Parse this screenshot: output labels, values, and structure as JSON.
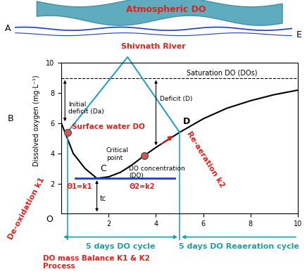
{
  "chart_data": {
    "type": "line",
    "y_label": "Dissolved oxygen (mg·L⁻¹)",
    "x": [
      0,
      0.5,
      1,
      1.5,
      2,
      2.5,
      3,
      3.5,
      4,
      5,
      6,
      7,
      8,
      9,
      10
    ],
    "values": [
      6.0,
      4.0,
      3.0,
      2.35,
      2.45,
      2.75,
      3.25,
      3.85,
      4.4,
      5.4,
      6.3,
      7.0,
      7.5,
      7.9,
      8.2
    ],
    "color": "#000000",
    "xlim": [
      0,
      10
    ],
    "xticks": [
      2,
      4,
      6,
      8,
      10
    ],
    "ylim": [
      0,
      10
    ],
    "yticks": [
      2,
      4,
      6,
      8,
      10
    ],
    "grid": false,
    "saturation": {
      "value": 9.0,
      "label": "Saturation DO (DOs)"
    },
    "annotations": {
      "initial_deficit": "Initial\ndeficit (Da)",
      "deficit": "Deficit (D)",
      "critical": "Critical\npoint",
      "tc": "tc",
      "do_conc": "DO concentration\n(DO)"
    },
    "labels": {
      "atmospheric": "Atmospheric DO",
      "river": "Shivnath River",
      "surface": "Surface water DO",
      "deox": "De-oxidation k1",
      "reaer": "Re-aeration k2",
      "theta1": "Θ1=k1",
      "theta2": "Θ2=k2",
      "cycle1": "5 days DO cycle",
      "cycle2": "5 days DO Reaeration cycle",
      "mass": "DO mass Balance K1 & K2\nProcess"
    },
    "points": {
      "A": "A",
      "B": "B",
      "C": "C",
      "D": "D",
      "E": "E",
      "O": "O"
    }
  }
}
